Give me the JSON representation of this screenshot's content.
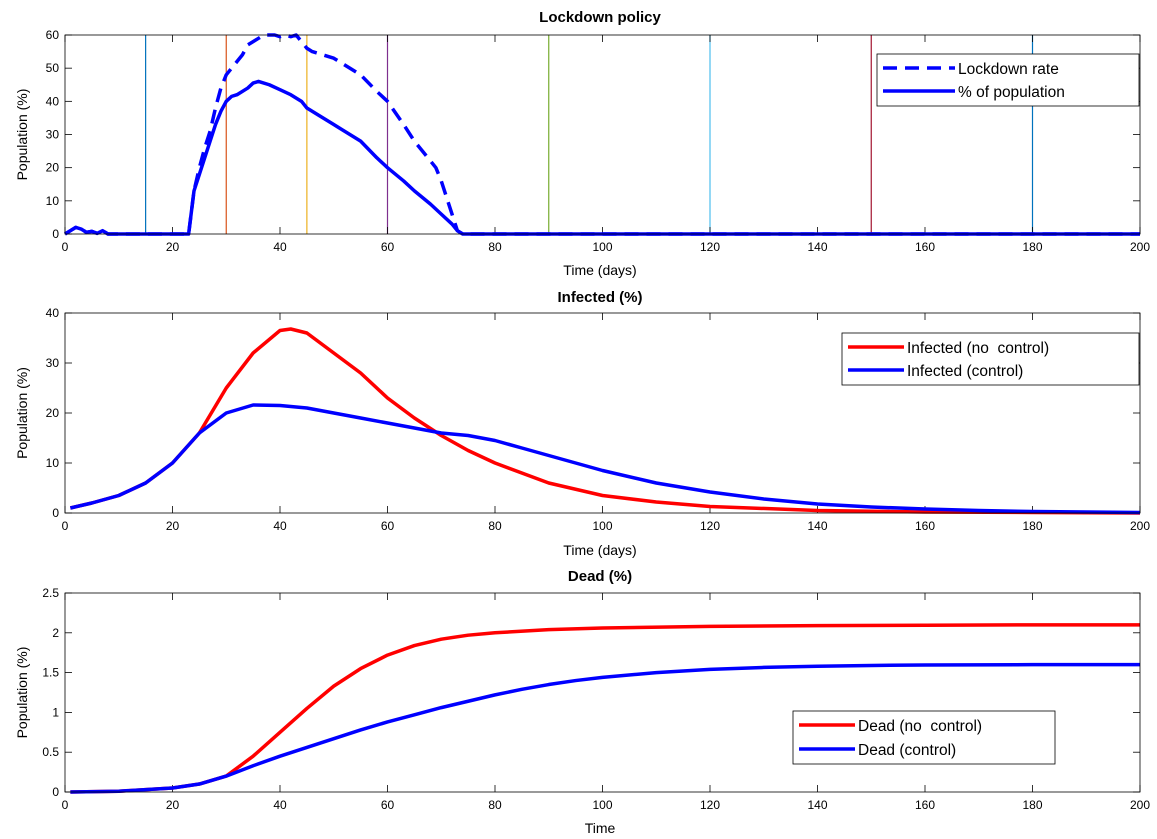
{
  "chart_data": [
    {
      "type": "line",
      "title": "Lockdown policy",
      "xlabel": "Time (days)",
      "ylabel": "Population (%)",
      "xlim": [
        0,
        200
      ],
      "ylim": [
        0,
        60
      ],
      "xticks": [
        0,
        20,
        40,
        60,
        80,
        100,
        120,
        140,
        160,
        180,
        200
      ],
      "yticks": [
        0,
        10,
        20,
        30,
        40,
        50,
        60
      ],
      "grid": false,
      "legend": "top-right",
      "vertical_lines": [
        {
          "x": 15,
          "color": "#0072bd"
        },
        {
          "x": 30,
          "color": "#d95319"
        },
        {
          "x": 45,
          "color": "#edb120"
        },
        {
          "x": 60,
          "color": "#7e2f8e"
        },
        {
          "x": 90,
          "color": "#77ac30"
        },
        {
          "x": 120,
          "color": "#4dbeee"
        },
        {
          "x": 150,
          "color": "#a2142f"
        },
        {
          "x": 180,
          "color": "#0072bd"
        }
      ],
      "series": [
        {
          "name": "Lockdown rate",
          "color": "#0000ff",
          "dash": "dashed",
          "points": [
            [
              0,
              0
            ],
            [
              1,
              1
            ],
            [
              2,
              2
            ],
            [
              3,
              1.5
            ],
            [
              4,
              0.5
            ],
            [
              5,
              0.8
            ],
            [
              6,
              0.2
            ],
            [
              7,
              1
            ],
            [
              8,
              0
            ],
            [
              23,
              0
            ],
            [
              24,
              13
            ],
            [
              25,
              20
            ],
            [
              26,
              26
            ],
            [
              27,
              31
            ],
            [
              28,
              38
            ],
            [
              29,
              44
            ],
            [
              30,
              48
            ],
            [
              31,
              50
            ],
            [
              32,
              52
            ],
            [
              33,
              54
            ],
            [
              34,
              57
            ],
            [
              35,
              58
            ],
            [
              36,
              59
            ],
            [
              37,
              60
            ],
            [
              38,
              60
            ],
            [
              39,
              60
            ],
            [
              40,
              59.5
            ],
            [
              41,
              60
            ],
            [
              42,
              59.5
            ],
            [
              43,
              60
            ],
            [
              44,
              58
            ],
            [
              45,
              56
            ],
            [
              46,
              55
            ],
            [
              50,
              53
            ],
            [
              55,
              48
            ],
            [
              58,
              43
            ],
            [
              60,
              40
            ],
            [
              63,
              33
            ],
            [
              65,
              28
            ],
            [
              67,
              24
            ],
            [
              69,
              20
            ],
            [
              70,
              16
            ],
            [
              71,
              11
            ],
            [
              72,
              6
            ],
            [
              73,
              1
            ],
            [
              74,
              0
            ],
            [
              200,
              0
            ]
          ]
        },
        {
          "name": "% of population",
          "color": "#0000ff",
          "dash": "solid",
          "points": [
            [
              0,
              0
            ],
            [
              1,
              1
            ],
            [
              2,
              2
            ],
            [
              3,
              1.5
            ],
            [
              4,
              0.5
            ],
            [
              5,
              0.8
            ],
            [
              6,
              0.2
            ],
            [
              7,
              1
            ],
            [
              8,
              0
            ],
            [
              23,
              0
            ],
            [
              24,
              13
            ],
            [
              25,
              18
            ],
            [
              26,
              23
            ],
            [
              27,
              28
            ],
            [
              28,
              33
            ],
            [
              29,
              37
            ],
            [
              30,
              40
            ],
            [
              31,
              41.5
            ],
            [
              32,
              42
            ],
            [
              34,
              44
            ],
            [
              35,
              45.5
            ],
            [
              36,
              46
            ],
            [
              38,
              45
            ],
            [
              40,
              43.5
            ],
            [
              42,
              42
            ],
            [
              44,
              40
            ],
            [
              45,
              38
            ],
            [
              47,
              36
            ],
            [
              50,
              33
            ],
            [
              55,
              28
            ],
            [
              58,
              23
            ],
            [
              60,
              20
            ],
            [
              63,
              16
            ],
            [
              65,
              13
            ],
            [
              68,
              9
            ],
            [
              70,
              6
            ],
            [
              72,
              3
            ],
            [
              73,
              1
            ],
            [
              74,
              0
            ],
            [
              200,
              0
            ]
          ]
        }
      ]
    },
    {
      "type": "line",
      "title": "Infected (%)",
      "xlabel": "Time (days)",
      "ylabel": "Population (%)",
      "xlim": [
        0,
        200
      ],
      "ylim": [
        0,
        40
      ],
      "xticks": [
        0,
        20,
        40,
        60,
        80,
        100,
        120,
        140,
        160,
        180,
        200
      ],
      "yticks": [
        0,
        10,
        20,
        30,
        40
      ],
      "grid": false,
      "legend": "top-right",
      "series": [
        {
          "name": "Infected (no  control)",
          "color": "#ff0000",
          "dash": "solid",
          "points": [
            [
              1,
              1
            ],
            [
              5,
              2
            ],
            [
              10,
              3.5
            ],
            [
              15,
              6
            ],
            [
              20,
              10
            ],
            [
              25,
              16
            ],
            [
              30,
              25
            ],
            [
              35,
              32
            ],
            [
              40,
              36.5
            ],
            [
              42,
              36.8
            ],
            [
              45,
              36
            ],
            [
              50,
              32
            ],
            [
              55,
              28
            ],
            [
              60,
              23
            ],
            [
              65,
              19
            ],
            [
              70,
              15.5
            ],
            [
              75,
              12.5
            ],
            [
              80,
              10
            ],
            [
              90,
              6
            ],
            [
              100,
              3.5
            ],
            [
              110,
              2.2
            ],
            [
              120,
              1.3
            ],
            [
              140,
              0.5
            ],
            [
              160,
              0.2
            ],
            [
              180,
              0.1
            ],
            [
              200,
              0
            ]
          ]
        },
        {
          "name": "Infected (control)",
          "color": "#0000ff",
          "dash": "solid",
          "points": [
            [
              1,
              1
            ],
            [
              5,
              2
            ],
            [
              10,
              3.5
            ],
            [
              15,
              6
            ],
            [
              20,
              10
            ],
            [
              25,
              16
            ],
            [
              30,
              20
            ],
            [
              35,
              21.6
            ],
            [
              40,
              21.5
            ],
            [
              45,
              21
            ],
            [
              50,
              20
            ],
            [
              55,
              19
            ],
            [
              60,
              18
            ],
            [
              65,
              17
            ],
            [
              70,
              16
            ],
            [
              75,
              15.5
            ],
            [
              80,
              14.5
            ],
            [
              85,
              13
            ],
            [
              90,
              11.5
            ],
            [
              100,
              8.5
            ],
            [
              110,
              6
            ],
            [
              120,
              4.2
            ],
            [
              130,
              2.8
            ],
            [
              140,
              1.8
            ],
            [
              150,
              1.2
            ],
            [
              160,
              0.8
            ],
            [
              170,
              0.5
            ],
            [
              180,
              0.3
            ],
            [
              190,
              0.2
            ],
            [
              200,
              0.1
            ]
          ]
        }
      ]
    },
    {
      "type": "line",
      "title": "Dead (%)",
      "xlabel": "Time",
      "ylabel": "Population (%)",
      "xlim": [
        0,
        200
      ],
      "ylim": [
        0,
        2.5
      ],
      "xticks": [
        0,
        20,
        40,
        60,
        80,
        100,
        120,
        140,
        160,
        180,
        200
      ],
      "yticks": [
        0,
        0.5,
        1,
        1.5,
        2,
        2.5
      ],
      "grid": false,
      "legend": "center-right",
      "series": [
        {
          "name": "Dead (no  control)",
          "color": "#ff0000",
          "dash": "solid",
          "points": [
            [
              1,
              0
            ],
            [
              10,
              0.01
            ],
            [
              20,
              0.05
            ],
            [
              25,
              0.1
            ],
            [
              30,
              0.2
            ],
            [
              35,
              0.45
            ],
            [
              40,
              0.75
            ],
            [
              45,
              1.05
            ],
            [
              50,
              1.33
            ],
            [
              55,
              1.55
            ],
            [
              60,
              1.72
            ],
            [
              65,
              1.84
            ],
            [
              70,
              1.92
            ],
            [
              75,
              1.97
            ],
            [
              80,
              2.0
            ],
            [
              90,
              2.04
            ],
            [
              100,
              2.06
            ],
            [
              120,
              2.08
            ],
            [
              140,
              2.09
            ],
            [
              160,
              2.095
            ],
            [
              180,
              2.1
            ],
            [
              200,
              2.1
            ]
          ]
        },
        {
          "name": "Dead (control)",
          "color": "#0000ff",
          "dash": "solid",
          "points": [
            [
              1,
              0
            ],
            [
              10,
              0.01
            ],
            [
              20,
              0.05
            ],
            [
              25,
              0.1
            ],
            [
              30,
              0.2
            ],
            [
              35,
              0.33
            ],
            [
              40,
              0.45
            ],
            [
              45,
              0.56
            ],
            [
              50,
              0.67
            ],
            [
              55,
              0.78
            ],
            [
              60,
              0.88
            ],
            [
              65,
              0.97
            ],
            [
              70,
              1.06
            ],
            [
              75,
              1.14
            ],
            [
              80,
              1.22
            ],
            [
              85,
              1.29
            ],
            [
              90,
              1.35
            ],
            [
              95,
              1.4
            ],
            [
              100,
              1.44
            ],
            [
              110,
              1.5
            ],
            [
              120,
              1.54
            ],
            [
              130,
              1.565
            ],
            [
              140,
              1.58
            ],
            [
              150,
              1.59
            ],
            [
              160,
              1.595
            ],
            [
              180,
              1.6
            ],
            [
              200,
              1.6
            ]
          ]
        }
      ]
    }
  ]
}
